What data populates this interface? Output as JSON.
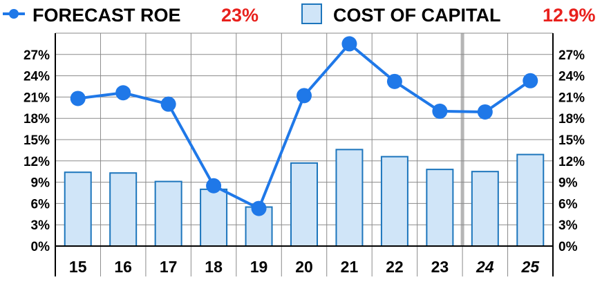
{
  "legend": {
    "roe_label": "FORECAST ROE",
    "roe_value": "23%",
    "coc_label": "COST OF CAPITAL",
    "coc_value": "12.9%"
  },
  "colors": {
    "line": "#1f78e8",
    "bar_fill": "#d0e5f8",
    "bar_stroke": "#1c75bc",
    "value_text": "#e8201c",
    "grid": "#8a8a8a",
    "forecast_divider": "#b5b5b5"
  },
  "chart_data": {
    "type": "bar",
    "categories": [
      "15",
      "16",
      "17",
      "18",
      "19",
      "20",
      "21",
      "22",
      "23",
      "24",
      "25"
    ],
    "forecast_categories": [
      "24",
      "25"
    ],
    "series": [
      {
        "name": "COST OF CAPITAL",
        "type": "bar",
        "values": [
          10.4,
          10.3,
          9.1,
          8.0,
          5.5,
          11.7,
          13.6,
          12.6,
          10.8,
          10.5,
          12.9
        ]
      },
      {
        "name": "FORECAST ROE",
        "type": "line",
        "values": [
          20.8,
          21.6,
          20.0,
          8.5,
          5.3,
          21.2,
          28.5,
          23.2,
          19.0,
          18.9,
          23.3
        ]
      }
    ],
    "ylim": [
      0,
      30
    ],
    "yticks": [
      "0%",
      "3%",
      "6%",
      "9%",
      "12%",
      "15%",
      "18%",
      "21%",
      "24%",
      "27%"
    ],
    "ytick_values": [
      0,
      3,
      6,
      9,
      12,
      15,
      18,
      21,
      24,
      27
    ],
    "grid": true,
    "legend_position": "top",
    "title": "",
    "xlabel": "",
    "ylabel": ""
  }
}
